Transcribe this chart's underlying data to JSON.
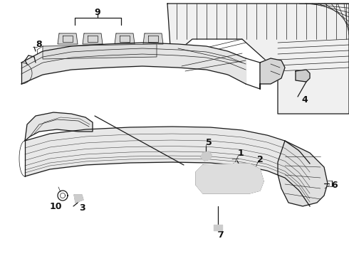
{
  "bg_color": "#ffffff",
  "line_color": "#1a1a1a",
  "label_color": "#111111",
  "lw_main": 0.9,
  "lw_thin": 0.5,
  "lw_thick": 1.1
}
